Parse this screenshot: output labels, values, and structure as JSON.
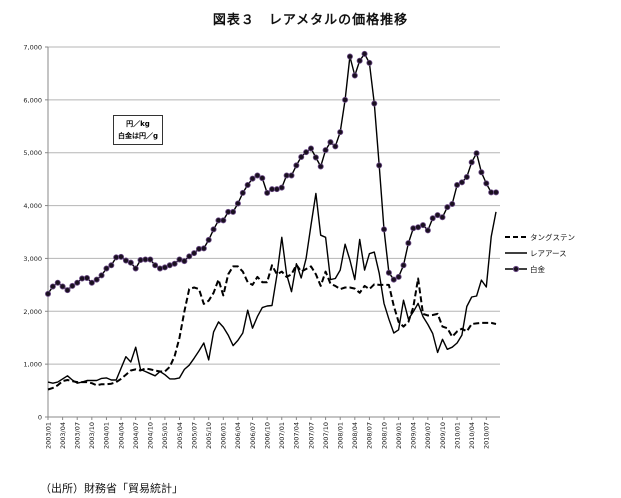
{
  "chart_data": {
    "type": "line",
    "title": "図表３　レアメタルの価格推移",
    "units_note": [
      "円／kg",
      "白金は円／g"
    ],
    "source": "（出所）財務省「貿易統計」",
    "xlabel": "",
    "ylabel": "",
    "ylim": [
      0,
      7000
    ],
    "yticks": [
      0,
      1000,
      2000,
      3000,
      4000,
      5000,
      6000,
      7000
    ],
    "ytick_labels": [
      "0",
      "1,000",
      "2,000",
      "3,000",
      "4,000",
      "5,000",
      "6,000",
      "7,000"
    ],
    "grid": true,
    "legend_position": "right",
    "x_start": "2003/01",
    "x_end": "2010/09",
    "x_tick_labels": [
      "2003/01",
      "2003/04",
      "2003/07",
      "2003/10",
      "2004/01",
      "2004/04",
      "2004/07",
      "2004/10",
      "2005/01",
      "2005/04",
      "2005/07",
      "2005/10",
      "2006/01",
      "2006/04",
      "2006/07",
      "2006/10",
      "2007/01",
      "2007/04",
      "2007/07",
      "2007/10",
      "2008/01",
      "2008/04",
      "2008/07",
      "2008/10",
      "2009/01",
      "2009/04",
      "2009/07",
      "2009/10",
      "2010/01",
      "2010/04",
      "2010/07"
    ],
    "series": [
      {
        "name": "タングステン",
        "style": "dashed",
        "values": [
          520,
          550,
          600,
          680,
          700,
          680,
          660,
          660,
          660,
          640,
          600,
          620,
          620,
          630,
          660,
          720,
          800,
          880,
          900,
          880,
          920,
          900,
          880,
          860,
          860,
          950,
          1150,
          1500,
          2000,
          2420,
          2450,
          2420,
          2140,
          2200,
          2350,
          2600,
          2300,
          2700,
          2850,
          2850,
          2750,
          2550,
          2500,
          2650,
          2550,
          2550,
          2870,
          2700,
          2750,
          2650,
          2700,
          2880,
          2750,
          2800,
          2850,
          2700,
          2480,
          2750,
          2520,
          2480,
          2420,
          2450,
          2450,
          2430,
          2350,
          2480,
          2420,
          2510,
          2500,
          2500,
          2500,
          2100,
          1800,
          1710,
          1800,
          2080,
          2620,
          1950,
          1920,
          1930,
          1950,
          1710,
          1680,
          1520,
          1620,
          1670,
          1620,
          1760,
          1770,
          1780,
          1780,
          1780,
          1760
        ]
      },
      {
        "name": "レアアース",
        "style": "solid",
        "values": [
          660,
          640,
          660,
          720,
          780,
          700,
          640,
          660,
          690,
          690,
          690,
          730,
          740,
          700,
          700,
          920,
          1140,
          1040,
          1320,
          900,
          860,
          820,
          780,
          860,
          800,
          720,
          720,
          740,
          900,
          980,
          1110,
          1250,
          1400,
          1080,
          1610,
          1800,
          1700,
          1550,
          1350,
          1450,
          1590,
          2020,
          1680,
          1900,
          2070,
          2100,
          2110,
          2680,
          3400,
          2700,
          2370,
          2900,
          2630,
          3000,
          3630,
          4230,
          3440,
          3400,
          2600,
          2620,
          2780,
          3270,
          2970,
          2600,
          3360,
          2780,
          3090,
          3120,
          2720,
          2150,
          1850,
          1590,
          1650,
          2210,
          1850,
          1990,
          2150,
          1900,
          1750,
          1580,
          1220,
          1470,
          1280,
          1320,
          1400,
          1550,
          2090,
          2270,
          2290,
          2590,
          2460,
          3410,
          3880
        ]
      },
      {
        "name": "白金",
        "style": "solid-markers",
        "values": [
          2330,
          2470,
          2540,
          2470,
          2400,
          2480,
          2540,
          2620,
          2630,
          2540,
          2600,
          2680,
          2810,
          2870,
          3020,
          3030,
          2960,
          2920,
          2810,
          2970,
          2980,
          2980,
          2870,
          2810,
          2830,
          2870,
          2900,
          2980,
          2950,
          3040,
          3100,
          3180,
          3190,
          3350,
          3550,
          3720,
          3720,
          3880,
          3880,
          4040,
          4240,
          4390,
          4510,
          4570,
          4520,
          4240,
          4310,
          4310,
          4340,
          4570,
          4570,
          4760,
          4920,
          5010,
          5080,
          4910,
          4740,
          5050,
          5200,
          5120,
          5390,
          6000,
          6820,
          6460,
          6740,
          6870,
          6700,
          5930,
          4760,
          3550,
          2730,
          2600,
          2650,
          2870,
          3290,
          3570,
          3590,
          3630,
          3530,
          3760,
          3820,
          3780,
          3970,
          4030,
          4390,
          4440,
          4540,
          4820,
          4990,
          4630,
          4420,
          4250,
          4250
        ]
      }
    ],
    "colors": {
      "line": "#000000",
      "grid": "#b5b5b5",
      "marker_fill": "#1a1020",
      "marker_stroke": "#6a4a85"
    }
  }
}
